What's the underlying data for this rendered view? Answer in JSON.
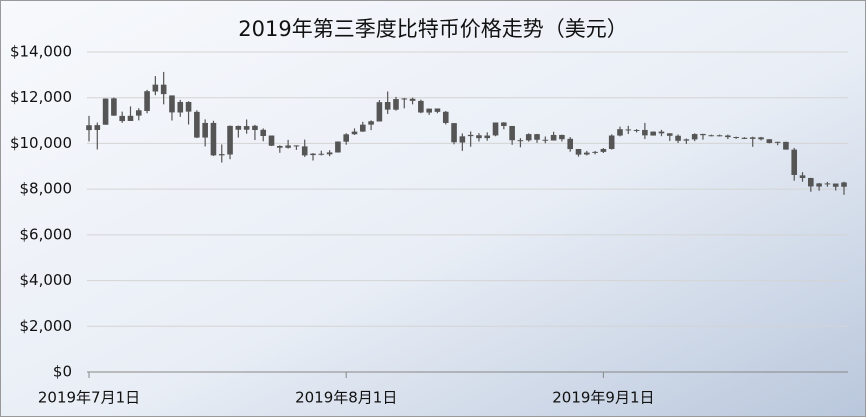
{
  "chart_data": {
    "type": "candlestick",
    "title": "2019年第三季度比特币价格走势（美元）",
    "x": [
      "2019-07-01",
      "2019-07-02",
      "2019-07-03",
      "2019-07-04",
      "2019-07-05",
      "2019-07-06",
      "2019-07-07",
      "2019-07-08",
      "2019-07-09",
      "2019-07-10",
      "2019-07-11",
      "2019-07-12",
      "2019-07-13",
      "2019-07-14",
      "2019-07-15",
      "2019-07-16",
      "2019-07-17",
      "2019-07-18",
      "2019-07-19",
      "2019-07-20",
      "2019-07-21",
      "2019-07-22",
      "2019-07-23",
      "2019-07-24",
      "2019-07-25",
      "2019-07-26",
      "2019-07-27",
      "2019-07-28",
      "2019-07-29",
      "2019-07-30",
      "2019-07-31",
      "2019-08-01",
      "2019-08-02",
      "2019-08-03",
      "2019-08-04",
      "2019-08-05",
      "2019-08-06",
      "2019-08-07",
      "2019-08-08",
      "2019-08-09",
      "2019-08-10",
      "2019-08-11",
      "2019-08-12",
      "2019-08-13",
      "2019-08-14",
      "2019-08-15",
      "2019-08-16",
      "2019-08-17",
      "2019-08-18",
      "2019-08-19",
      "2019-08-20",
      "2019-08-21",
      "2019-08-22",
      "2019-08-23",
      "2019-08-24",
      "2019-08-25",
      "2019-08-26",
      "2019-08-27",
      "2019-08-28",
      "2019-08-29",
      "2019-08-30",
      "2019-08-31",
      "2019-09-01",
      "2019-09-02",
      "2019-09-03",
      "2019-09-04",
      "2019-09-05",
      "2019-09-06",
      "2019-09-07",
      "2019-09-08",
      "2019-09-09",
      "2019-09-10",
      "2019-09-11",
      "2019-09-12",
      "2019-09-13",
      "2019-09-14",
      "2019-09-15",
      "2019-09-16",
      "2019-09-17",
      "2019-09-18",
      "2019-09-19",
      "2019-09-20",
      "2019-09-21",
      "2019-09-22",
      "2019-09-23",
      "2019-09-24",
      "2019-09-25",
      "2019-09-26",
      "2019-09-27",
      "2019-09-28",
      "2019-09-29",
      "2019-09-30"
    ],
    "open": [
      10796,
      10588,
      10818,
      11972,
      11204,
      10982,
      11217,
      11420,
      12271,
      12571,
      12100,
      11354,
      11814,
      11381,
      10257,
      10897,
      9478,
      9516,
      10765,
      10599,
      10771,
      10596,
      10346,
      9887,
      9809,
      9913,
      9871,
      9491,
      9548,
      9523,
      9604,
      10077,
      10402,
      10519,
      10822,
      10960,
      11812,
      11476,
      11955,
      11953,
      11861,
      11349,
      11529,
      11385,
      10889,
      10039,
      10319,
      10358,
      10233,
      10350,
      10917,
      10764,
      10142,
      10136,
      10407,
      10160,
      10127,
      10372,
      10203,
      9756,
      9515,
      9597,
      9630,
      9758,
      10345,
      10611,
      10588,
      10590,
      10345,
      10518,
      10443,
      10336,
      10123,
      10176,
      10416,
      10345,
      10356,
      10347,
      10281,
      10247,
      10200,
      10266,
      10183,
      10024,
      10067,
      9729,
      8603,
      8488,
      8113,
      8251,
      8246,
      8104
    ],
    "high": [
      11206,
      10913,
      11968,
      12007,
      11392,
      11620,
      11541,
      12345,
      12946,
      13129,
      12100,
      11905,
      11843,
      11451,
      11052,
      10991,
      9956,
      10786,
      10779,
      11048,
      10813,
      10657,
      10347,
      9920,
      10154,
      9916,
      10167,
      9575,
      9681,
      9701,
      10086,
      10446,
      10657,
      10946,
      11010,
      11895,
      12273,
      12036,
      11992,
      12003,
      11915,
      11523,
      11529,
      11420,
      10889,
      10437,
      10524,
      10452,
      10487,
      10916,
      10934,
      10764,
      10232,
      10442,
      10418,
      10304,
      10512,
      10381,
      10279,
      9756,
      9674,
      9672,
      9796,
      10396,
      10736,
      10771,
      10627,
      10899,
      10524,
      10595,
      10450,
      10394,
      10215,
      10442,
      10418,
      10386,
      10387,
      10386,
      10296,
      10275,
      10295,
      10285,
      10188,
      10074,
      10074,
      9804,
      8744,
      8497,
      8271,
      8316,
      8246,
      8325
    ],
    "low": [
      10089,
      9737,
      10818,
      11208,
      10900,
      10982,
      11010,
      11320,
      12111,
      11710,
      11002,
      11163,
      10827,
      10234,
      9869,
      9448,
      9164,
      9309,
      10257,
      10425,
      10147,
      10096,
      9884,
      9589,
      9773,
      9717,
      9411,
      9252,
      9472,
      9443,
      9598,
      9943,
      10371,
      10503,
      10583,
      10960,
      11290,
      11433,
      11534,
      11710,
      11323,
      11248,
      11320,
      10830,
      9961,
      9675,
      9855,
      10086,
      10119,
      10313,
      10618,
      9940,
      9831,
      10080,
      10025,
      10008,
      10126,
      10087,
      9639,
      9421,
      9475,
      9522,
      9583,
      9730,
      10309,
      10414,
      10481,
      10190,
      10344,
      10316,
      10109,
      10020,
      9980,
      10099,
      10164,
      10311,
      10305,
      10189,
      10199,
      10191,
      9851,
      10132,
      10000,
      9922,
      9727,
      8370,
      8325,
      7884,
      7928,
      8105,
      7941,
      7752
    ],
    "close": [
      10584,
      10802,
      11961,
      11215,
      10978,
      11208,
      11450,
      12285,
      12573,
      12157,
      11358,
      11815,
      11392,
      10256,
      10896,
      9478,
      9532,
      10767,
      10599,
      10759,
      10587,
      10325,
      9900,
      9811,
      9911,
      9871,
      9477,
      9553,
      9519,
      9607,
      10085,
      10399,
      10518,
      10821,
      10970,
      11805,
      11478,
      11941,
      11966,
      11862,
      11354,
      11523,
      11382,
      10895,
      10051,
      10311,
      10374,
      10231,
      10345,
      10916,
      10764,
      10141,
      10131,
      10407,
      10160,
      10138,
      10371,
      10185,
      9754,
      9510,
      9599,
      9630,
      9757,
      10346,
      10623,
      10594,
      10575,
      10353,
      10517,
      10441,
      10334,
      10115,
      10178,
      10410,
      10360,
      10358,
      10347,
      10276,
      10241,
      10198,
      10266,
      10181,
      10019,
      10070,
      9729,
      8620,
      8487,
      8118,
      8251,
      8245,
      8104,
      8293
    ],
    "color": "#555555",
    "xticks": [
      {
        "value": "2019-07-01",
        "label": "2019年7月1日"
      },
      {
        "value": "2019-08-01",
        "label": "2019年8月1日"
      },
      {
        "value": "2019-09-01",
        "label": "2019年9月1日"
      }
    ],
    "ylim": [
      0,
      14000
    ],
    "yticks": [
      {
        "value": 0,
        "label": "$0"
      },
      {
        "value": 2000,
        "label": "$2,000"
      },
      {
        "value": 4000,
        "label": "$4,000"
      },
      {
        "value": 6000,
        "label": "$6,000"
      },
      {
        "value": 8000,
        "label": "$8,000"
      },
      {
        "value": 10000,
        "label": "$10,000"
      },
      {
        "value": 12000,
        "label": "$12,000"
      },
      {
        "value": 14000,
        "label": "$14,000"
      }
    ],
    "grid": true
  }
}
